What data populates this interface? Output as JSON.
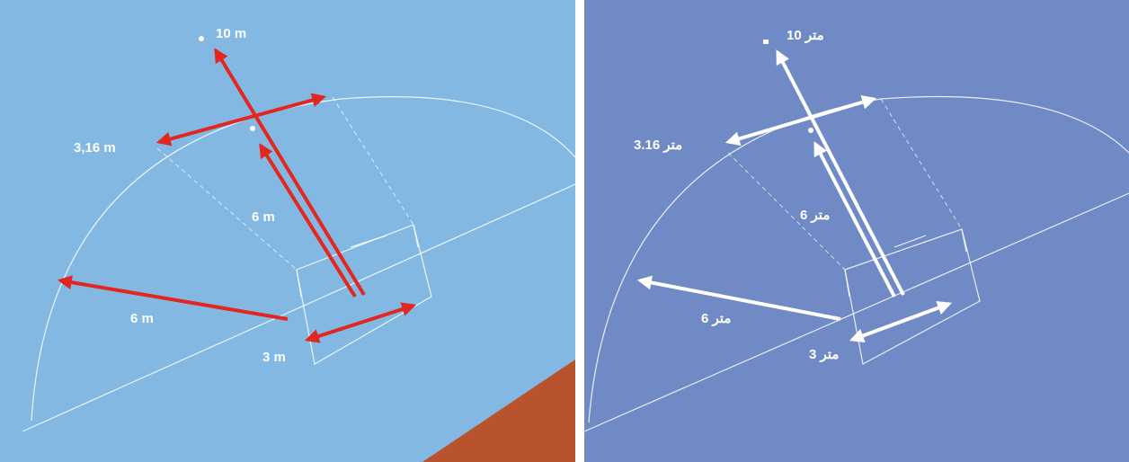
{
  "panels": [
    {
      "labels": [
        "10 m",
        "3,16 m",
        "6 m",
        "6 m",
        "3 m"
      ]
    },
    {
      "labels": [
        "10 متر",
        "3.16 متر",
        "6 متر",
        "6 متر",
        "3 متر"
      ]
    }
  ]
}
